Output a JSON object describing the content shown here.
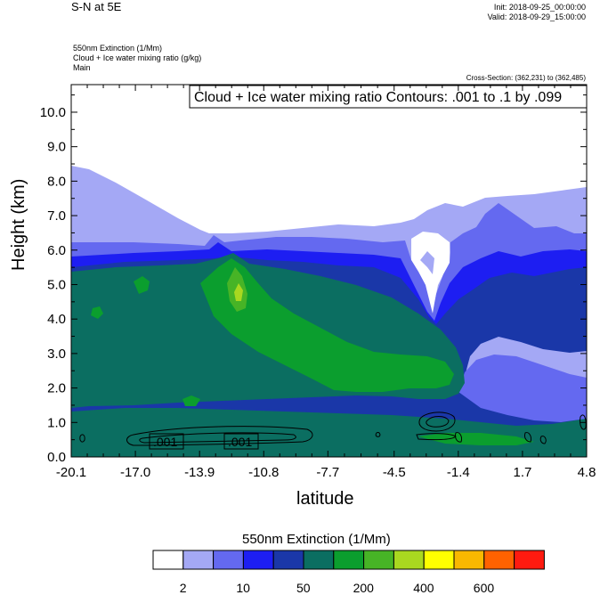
{
  "header": {
    "title": "S-N at 5E",
    "init": "Init: 2018-09-25_00:00:00",
    "valid": "Valid: 2018-09-29_15:00:00",
    "field1": "550nm Extinction   (1/Mm)",
    "field2": "Cloud + Ice water mixing ratio   (g/kg)",
    "field3": "Main",
    "cross_section": "Cross-Section: (362,231) to (362,485)"
  },
  "chart_data": {
    "type": "heatmap",
    "title": "S-N at 5E",
    "xlabel": "latitude",
    "ylabel": "Height (km)",
    "xlim": [
      -20.1,
      4.8
    ],
    "ylim": [
      0,
      10.8
    ],
    "x_ticks": [
      "-20.1",
      "-17.0",
      "-13.9",
      "-10.8",
      "-7.7",
      "-4.5",
      "-1.4",
      "1.7",
      "4.8"
    ],
    "y_ticks": [
      "0.0",
      "1.0",
      "2.0",
      "3.0",
      "4.0",
      "5.0",
      "6.0",
      "7.0",
      "8.0",
      "9.0",
      "10.0"
    ],
    "contour_note": "Cloud + Ice water mixing ratio Contours: .001 to .1 by .099",
    "contour_labels": [
      ".001",
      ".001"
    ],
    "colorbar": {
      "title": "550nm Extinction  (1/Mm)",
      "colors": [
        "#ffffff",
        "#a4a8f5",
        "#6469f0",
        "#1d1ef2",
        "#1a37a8",
        "#0b6e61",
        "#0b9e2e",
        "#47b426",
        "#a9d820",
        "#ffff00",
        "#f9b800",
        "#ff6200",
        "#ff1a10"
      ],
      "tick_labels": [
        "2",
        "10",
        "50",
        "200",
        "400",
        "600"
      ]
    }
  }
}
